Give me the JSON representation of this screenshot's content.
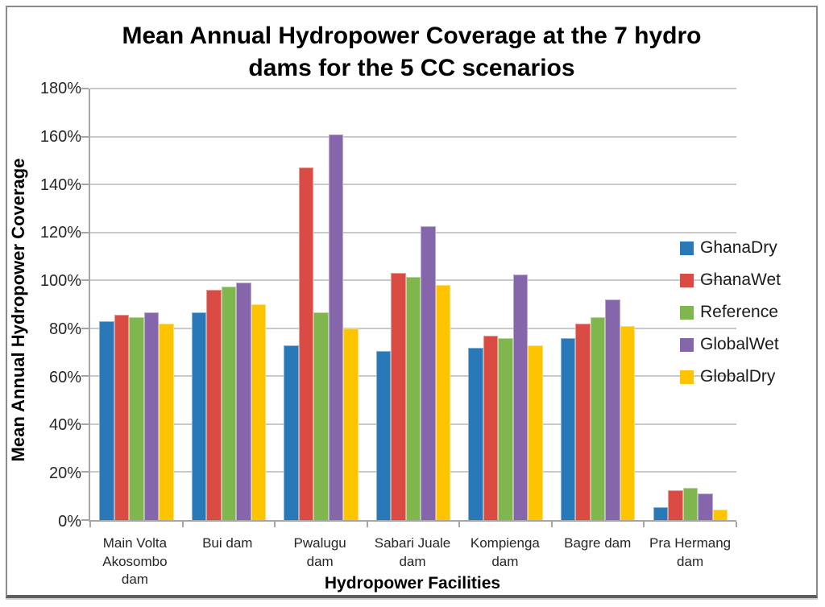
{
  "chart": {
    "title_line1": "Mean Annual Hydropower Coverage at the 7 hydro",
    "title_line2": "dams for the 5 CC scenarios"
  },
  "chart_data": {
    "type": "bar",
    "title": "Mean Annual Hydropower Coverage at the 7 hydro dams for the 5 CC scenarios",
    "xlabel": "Hydropower Facilities",
    "ylabel": "Mean Annual Hydropower Coverage",
    "ylim": [
      0,
      180
    ],
    "ytick_values": [
      0,
      20,
      40,
      60,
      80,
      100,
      120,
      140,
      160,
      180
    ],
    "ytick_labels": [
      "0%",
      "20%",
      "40%",
      "60%",
      "80%",
      "100%",
      "120%",
      "140%",
      "160%",
      "180%"
    ],
    "grid": true,
    "legend_position": "right-overlay",
    "categories": [
      "Main Volta Akosombo dam",
      "Bui dam",
      "Pwalugu dam",
      "Sabari Juale dam",
      "Kompienga dam",
      "Bagre dam",
      "Pra Hermang dam"
    ],
    "series": [
      {
        "name": "GhanaDry",
        "color": "#2979B9",
        "values": [
          83,
          86.5,
          73,
          70.5,
          72,
          76,
          5.5
        ]
      },
      {
        "name": "GhanaWet",
        "color": "#DA4B43",
        "values": [
          85.5,
          96,
          147,
          103,
          77,
          82,
          12.5
        ]
      },
      {
        "name": "Reference",
        "color": "#7FB64E",
        "values": [
          84.5,
          97.5,
          86.5,
          101.5,
          76,
          84.5,
          13.5
        ]
      },
      {
        "name": "GlobalWet",
        "color": "#8666AB",
        "values": [
          86.5,
          99,
          161,
          122.5,
          102.5,
          92,
          11
        ]
      },
      {
        "name": "GlobalDry",
        "color": "#FFC400",
        "values": [
          82,
          90,
          80,
          98,
          73,
          81,
          4.5
        ]
      }
    ],
    "style": {
      "grid_color": "#C9C9C9",
      "axis_color": "#A6A6A6",
      "text_color": "#1A1A1A",
      "background": "#FFFFFF",
      "border_color": "#8A8A8A"
    }
  }
}
